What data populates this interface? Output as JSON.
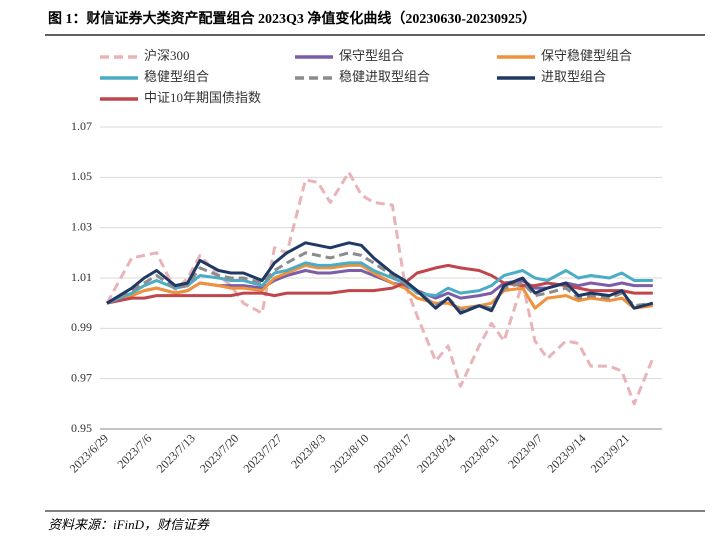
{
  "chart_data": {
    "type": "line",
    "title": "图 1：财信证券大类资产配置组合 2023Q3 净值变化曲线（20230630-20230925）",
    "source": "资料来源：iFinD，财信证券",
    "x": [
      "2023/6/29",
      "2023/7/3",
      "2023/7/5",
      "2023/7/7",
      "2023/7/10",
      "2023/7/12",
      "2023/7/14",
      "2023/7/17",
      "2023/7/19",
      "2023/7/21",
      "2023/7/24",
      "2023/7/26",
      "2023/7/28",
      "2023/7/31",
      "2023/8/2",
      "2023/8/4",
      "2023/8/7",
      "2023/8/9",
      "2023/8/11",
      "2023/8/14",
      "2023/8/16",
      "2023/8/18",
      "2023/8/21",
      "2023/8/23",
      "2023/8/25",
      "2023/8/28",
      "2023/8/30",
      "2023/9/1",
      "2023/9/4",
      "2023/9/6",
      "2023/9/8",
      "2023/9/11",
      "2023/9/13",
      "2023/9/15",
      "2023/9/18",
      "2023/9/20",
      "2023/9/22",
      "2023/9/25"
    ],
    "xticks": [
      "2023/6/29",
      "2023/7/6",
      "2023/7/13",
      "2023/7/20",
      "2023/7/27",
      "2023/8/3",
      "2023/8/10",
      "2023/8/17",
      "2023/8/24",
      "2023/8/31",
      "2023/9/7",
      "2023/9/14",
      "2023/9/21"
    ],
    "ylim": [
      0.95,
      1.07
    ],
    "yticks": [
      0.95,
      0.97,
      0.99,
      1.01,
      1.03,
      1.05,
      1.07
    ],
    "grid": true,
    "series": [
      {
        "name": "沪深300",
        "color": "#e8b4b8",
        "dashed": true,
        "values": [
          1.0,
          1.018,
          1.019,
          1.02,
          1.005,
          1.01,
          1.019,
          1.011,
          1.007,
          1.0,
          0.996,
          1.022,
          1.02,
          1.049,
          1.048,
          1.04,
          1.052,
          1.043,
          1.04,
          1.039,
          1.008,
          0.995,
          0.977,
          0.983,
          0.967,
          0.983,
          0.992,
          0.985,
          1.008,
          0.985,
          0.978,
          0.985,
          0.984,
          0.975,
          0.975,
          0.973,
          0.96,
          0.978
        ]
      },
      {
        "name": "保守型组合",
        "color": "#7b5ea7",
        "values": [
          1.0,
          1.003,
          1.005,
          1.006,
          1.004,
          1.005,
          1.008,
          1.007,
          1.007,
          1.007,
          1.006,
          1.009,
          1.011,
          1.013,
          1.012,
          1.012,
          1.013,
          1.013,
          1.011,
          1.008,
          1.007,
          1.005,
          1.002,
          1.004,
          1.002,
          1.003,
          1.004,
          1.008,
          1.009,
          1.006,
          1.006,
          1.008,
          1.007,
          1.008,
          1.007,
          1.008,
          1.007,
          1.007
        ]
      },
      {
        "name": "保守稳健型组合",
        "color": "#f0923c",
        "values": [
          1.0,
          1.003,
          1.005,
          1.006,
          1.004,
          1.005,
          1.008,
          1.007,
          1.006,
          1.006,
          1.005,
          1.01,
          1.012,
          1.015,
          1.014,
          1.014,
          1.015,
          1.015,
          1.012,
          1.008,
          1.006,
          1.002,
          1.0,
          1.0,
          0.998,
          0.999,
          1.0,
          1.005,
          1.006,
          0.998,
          1.002,
          1.003,
          1.001,
          1.002,
          1.001,
          1.002,
          0.998,
          0.999
        ]
      },
      {
        "name": "稳健型组合",
        "color": "#4bacc6",
        "values": [
          1.0,
          1.004,
          1.007,
          1.009,
          1.006,
          1.007,
          1.011,
          1.01,
          1.009,
          1.009,
          1.007,
          1.012,
          1.013,
          1.016,
          1.015,
          1.015,
          1.016,
          1.016,
          1.013,
          1.01,
          1.008,
          1.004,
          1.003,
          1.006,
          1.004,
          1.005,
          1.007,
          1.011,
          1.013,
          1.01,
          1.009,
          1.013,
          1.01,
          1.011,
          1.01,
          1.012,
          1.009,
          1.009
        ]
      },
      {
        "name": "稳健进取型组合",
        "color": "#8c8c8c",
        "dashed": true,
        "values": [
          1.0,
          1.005,
          1.008,
          1.011,
          1.006,
          1.007,
          1.014,
          1.011,
          1.01,
          1.01,
          1.008,
          1.013,
          1.016,
          1.02,
          1.019,
          1.018,
          1.02,
          1.019,
          1.016,
          1.011,
          1.008,
          1.005,
          0.999,
          1.002,
          0.997,
          0.999,
          0.998,
          1.006,
          1.008,
          1.003,
          1.004,
          1.006,
          1.002,
          1.003,
          1.002,
          1.004,
          0.999,
          1.0
        ]
      },
      {
        "name": "进取型组合",
        "color": "#203864",
        "values": [
          1.0,
          1.006,
          1.01,
          1.013,
          1.007,
          1.008,
          1.017,
          1.013,
          1.012,
          1.012,
          1.009,
          1.016,
          1.02,
          1.024,
          1.023,
          1.022,
          1.024,
          1.023,
          1.018,
          1.012,
          1.009,
          1.005,
          0.998,
          1.002,
          0.996,
          0.999,
          0.997,
          1.007,
          1.01,
          1.004,
          1.006,
          1.008,
          1.003,
          1.004,
          1.003,
          1.005,
          0.998,
          1.0
        ]
      },
      {
        "name": "中证10年期国债指数",
        "color": "#c0464b",
        "values": [
          1.0,
          1.002,
          1.002,
          1.003,
          1.003,
          1.003,
          1.003,
          1.003,
          1.003,
          1.004,
          1.004,
          1.003,
          1.004,
          1.004,
          1.004,
          1.004,
          1.005,
          1.005,
          1.005,
          1.006,
          1.008,
          1.012,
          1.014,
          1.015,
          1.014,
          1.013,
          1.011,
          1.008,
          1.007,
          1.007,
          1.008,
          1.007,
          1.006,
          1.005,
          1.005,
          1.005,
          1.004,
          1.004
        ]
      }
    ]
  }
}
